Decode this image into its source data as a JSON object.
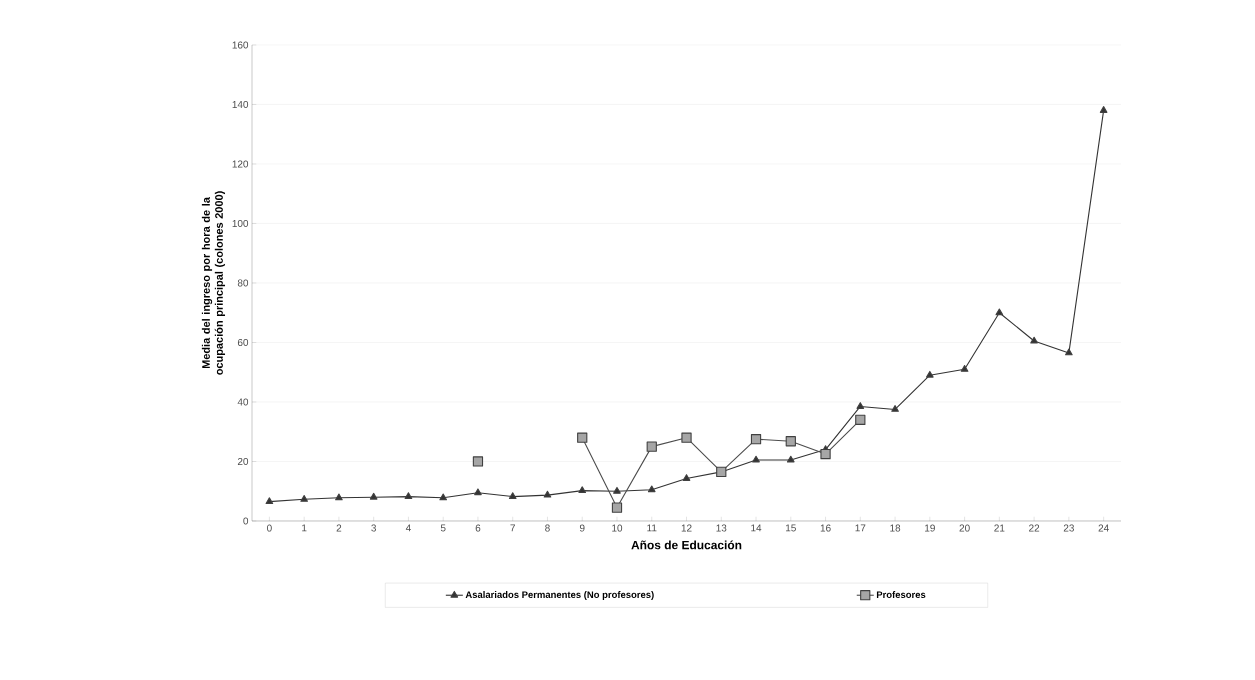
{
  "chart_data": {
    "type": "line",
    "xlabel": "Años de Educación",
    "ylabel": "Media del ingreso por hora de la ocupación principal (colones 2000)",
    "categories": [
      "0",
      "1",
      "2",
      "3",
      "4",
      "5",
      "6",
      "7",
      "8",
      "9",
      "10",
      "11",
      "12",
      "13",
      "14",
      "15",
      "16",
      "17",
      "18",
      "19",
      "20",
      "21",
      "22",
      "23",
      "24"
    ],
    "series": [
      {
        "name": "Asalariados Permanentes (No profesores)",
        "color": "#333333",
        "marker": "triangle",
        "values": [
          6.5,
          7.3,
          7.8,
          8,
          8.2,
          7.8,
          9.5,
          8.2,
          8.7,
          10.2,
          10,
          10.5,
          14.3,
          16.5,
          20.5,
          20.5,
          24,
          38.5,
          37.5,
          49,
          51,
          70,
          60.5,
          56.5,
          138
        ]
      },
      {
        "name": "Profesores",
        "color": "#a6a6a6",
        "marker": "square",
        "values": [
          null,
          null,
          null,
          null,
          null,
          null,
          20,
          null,
          null,
          28,
          4.5,
          25,
          28,
          16.5,
          27.5,
          26.8,
          22.5,
          34,
          null,
          null,
          null,
          null,
          null,
          null,
          null
        ]
      }
    ],
    "ylim": [
      0,
      160
    ],
    "yticks": [
      0,
      20,
      40,
      60,
      80,
      100,
      120,
      140,
      160
    ],
    "grid": "y",
    "legend": "bottom",
    "line_style": "solid"
  }
}
